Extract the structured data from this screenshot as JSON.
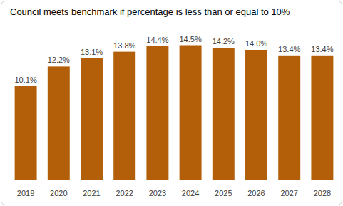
{
  "chart_data": {
    "type": "bar",
    "title": "Council meets benchmark if percentage is less than or equal to 10%",
    "categories": [
      "2019",
      "2020",
      "2021",
      "2022",
      "2023",
      "2024",
      "2025",
      "2026",
      "2027",
      "2028"
    ],
    "values": [
      10.1,
      12.2,
      13.1,
      13.8,
      14.4,
      14.5,
      14.2,
      14.0,
      13.4,
      13.4
    ],
    "value_labels": [
      "10.1%",
      "12.2%",
      "13.1%",
      "13.8%",
      "14.4%",
      "14.5%",
      "14.2%",
      "14.0%",
      "13.4%",
      "13.4%"
    ],
    "color": "#b35f0a",
    "ylim": [
      0,
      16
    ],
    "grid": false,
    "data_labels": true,
    "tick_labels": "x"
  }
}
